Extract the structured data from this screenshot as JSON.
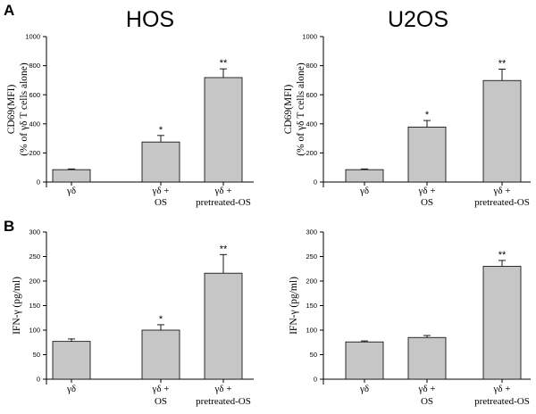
{
  "figure": {
    "panel_labels": [
      "A",
      "B"
    ],
    "column_titles": [
      "HOS",
      "U2OS"
    ]
  },
  "chart_data": [
    {
      "type": "bar",
      "title": "HOS",
      "panel": "A",
      "ylabel_lines": [
        "CD69(MFI)",
        "(% of γδ T cells alone)"
      ],
      "ylim": [
        0,
        1000
      ],
      "yticks": [
        0,
        200,
        400,
        600,
        800,
        1000
      ],
      "categories": [
        [
          "γδ"
        ],
        [
          "γδ +",
          "OS"
        ],
        [
          "γδ +",
          "pretreated-OS"
        ]
      ],
      "values": [
        85,
        275,
        718
      ],
      "errors": [
        5,
        45,
        60
      ],
      "significance": [
        "",
        "*",
        "**"
      ]
    },
    {
      "type": "bar",
      "title": "U2OS",
      "panel": "A",
      "ylabel_lines": [
        "CD69(MFI)",
        "(% of γδ T cells alone)"
      ],
      "ylim": [
        0,
        1000
      ],
      "yticks": [
        0,
        200,
        400,
        600,
        800,
        1000
      ],
      "categories": [
        [
          "γδ"
        ],
        [
          "γδ +",
          "OS"
        ],
        [
          "γδ +",
          "pretreated-OS"
        ]
      ],
      "values": [
        85,
        378,
        698
      ],
      "errors": [
        5,
        45,
        78
      ],
      "significance": [
        "",
        "*",
        "**"
      ]
    },
    {
      "type": "bar",
      "title": "",
      "panel": "B",
      "ylabel_lines": [
        "IFN-γ (pg/ml)"
      ],
      "ylim": [
        0,
        300
      ],
      "yticks": [
        0,
        50,
        100,
        150,
        200,
        250,
        300
      ],
      "categories": [
        [
          "γδ"
        ],
        [
          "γδ +",
          "OS"
        ],
        [
          "γδ +",
          "pretreated-OS"
        ]
      ],
      "values": [
        77,
        100,
        216
      ],
      "errors": [
        5,
        11,
        38
      ],
      "significance": [
        "",
        "*",
        "**"
      ]
    },
    {
      "type": "bar",
      "title": "",
      "panel": "B",
      "ylabel_lines": [
        "IFN-γ (pg/ml)"
      ],
      "ylim": [
        0,
        300
      ],
      "yticks": [
        0,
        50,
        100,
        150,
        200,
        250,
        300
      ],
      "categories": [
        [
          "γδ"
        ],
        [
          "γδ +",
          "OS"
        ],
        [
          "γδ +",
          "pretreated-OS"
        ]
      ],
      "values": [
        76,
        85,
        230
      ],
      "errors": [
        2,
        4,
        12
      ],
      "significance": [
        "",
        "",
        "**"
      ]
    }
  ]
}
